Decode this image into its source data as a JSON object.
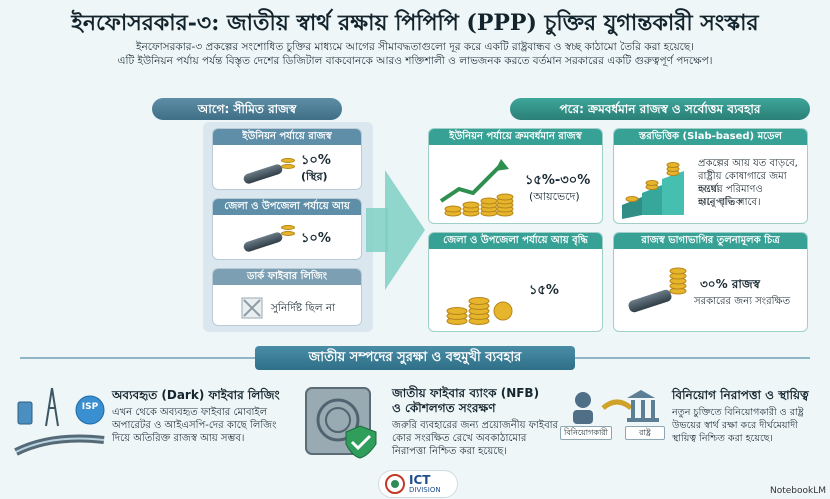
{
  "title": "ইনফোসরকার-৩: জাতীয় স্বার্থ রক্ষায় পিপিপি (PPP) চুক্তির যুগান্তকারী সংস্কার",
  "intro": {
    "line1": "ইনফোসরকার-৩ প্রকল্পের সংশোধিত চুক্তির মাধ্যমে আগের সীমাবদ্ধতাগুলো দূর করে একটি রাষ্ট্রবান্ধব ও স্বচ্ছ কাঠামো তৈরি করা হয়েছে।",
    "line2": "এটি ইউনিয়ন পর্যায় পর্যন্ত বিস্তৃত দেশের ডিজিটাল বাকবোনকে আরও শক্তিশালী ও লাভজনক করতে বর্তমান সরকারের একটি গুরুত্বপূর্ণ পদক্ষেপ।"
  },
  "before": {
    "header": "আগে: সীমিত রাজস্ব",
    "cards": [
      {
        "caption": "ইউনিয়ন পর্যায়ে রাজস্ব",
        "value": "১০%",
        "note": "(স্থির)"
      },
      {
        "caption": "জেলা ও উপজেলা পর্যায়ে আয়",
        "value": "১০%",
        "note": ""
      },
      {
        "caption": "ডার্ক ফাইবার লিজিং",
        "value": "সুনির্দিষ্ট ছিল না",
        "note": ""
      }
    ]
  },
  "after": {
    "header": "পরে: ক্রমবর্ধমান রাজস্ব ও সর্বোত্তম ব্যবহার",
    "cards": [
      {
        "caption": "ইউনিয়ন পর্যায়ে ক্রমবর্ধমান রাজস্ব",
        "value": "১৫%-৩০%",
        "note": "(আয়ভেদে)"
      },
      {
        "caption": "স্তরভিত্তিক (Slab-based) মডেল",
        "text1": "প্রকল্পের আয় যত বাড়বে,",
        "text2": "রাষ্ট্রীয় কোষাগারে জমা হওয়া",
        "text3": "অর্থের পরিমাণও আনুপাতিক",
        "text4": "হারে বৃদ্ধি পাবে।"
      },
      {
        "caption": "জেলা ও উপজেলা পর্যায়ে আয় বৃদ্ধি",
        "value": "১৫%",
        "note": ""
      },
      {
        "caption": "রাজস্ব ভাগাভাগির তুলনামূলক চিত্র",
        "value": "৩০% রাজস্ব",
        "note": "সরকারের জন্য সংরক্ষিত"
      }
    ]
  },
  "section_ribbon": "জাতীয় সম্পদের সুরক্ষা ও বহুমুখী ব্যবহার",
  "bottom": [
    {
      "title": "অব্যবহৃত (Dark) ফাইবার লিজিং",
      "l1": "এখন থেকে অব্যবহৃত ফাইবার মোবাইল",
      "l2": "অপারেটর ও আইএসপি-দের কাছে লিজিং",
      "l3": "দিয়ে অতিরিক্ত রাজস্ব আয় সম্ভব।",
      "icon_label": "ISP"
    },
    {
      "title": "জাতীয় ফাইবার ব্যাংক (NFB)",
      "title2": "ও কৌশলগত সংরক্ষণ",
      "l1": "জরুরি ব্যবহারের জন্য প্রয়োজনীয় ফাইবার",
      "l2": "কোর সংরক্ষিত রেখে অবকাঠামোর",
      "l3": "নিরাপত্তা নিশ্চিত করা হয়েছে।"
    },
    {
      "title": "বিনিয়োগ নিরাপত্তা ও স্থায়িত্ব",
      "l1": "নতুন চুক্তিতে বিনিয়োগকারী ও রাষ্ট্র",
      "l2": "উভয়ের স্বার্থ রক্ষা করে দীর্ঘমেয়াদী",
      "l3": "স্থায়িত্ব নিশ্চিত করা হয়েছে।",
      "lab_a": "বিনিয়োগকারী",
      "lab_b": "রাষ্ট্র"
    }
  ],
  "footer": {
    "logo_text": "ICT",
    "logo_sub": "DIVISION"
  },
  "watermark": "NotebookLM",
  "colors": {
    "before_accent": "#5f8fa8",
    "after_accent": "#37a195",
    "coin": "#e6b52c"
  }
}
